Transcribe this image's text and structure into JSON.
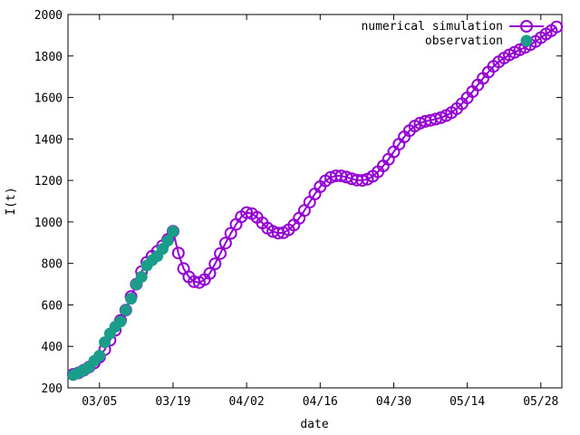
{
  "chart_data": {
    "type": "line",
    "xlabel": "date",
    "ylabel": "I(t)",
    "x_ticks": [
      "03/05",
      "03/19",
      "04/02",
      "04/16",
      "04/30",
      "05/14",
      "05/28"
    ],
    "y_ticks": [
      200,
      400,
      600,
      800,
      1000,
      1200,
      1400,
      1600,
      1800,
      2000
    ],
    "xlim": [
      "2020-02-28",
      "2020-06-01"
    ],
    "ylim": [
      200,
      2000
    ],
    "grid": false,
    "legend_position": "top-right",
    "series": [
      {
        "name": "numerical simulation",
        "style": "line-open-circles",
        "color": "#9400d3",
        "points": [
          [
            "2020-02-29",
            265
          ],
          [
            "2020-03-01",
            272
          ],
          [
            "2020-03-02",
            285
          ],
          [
            "2020-03-03",
            300
          ],
          [
            "2020-03-04",
            320
          ],
          [
            "2020-03-05",
            348
          ],
          [
            "2020-03-06",
            385
          ],
          [
            "2020-03-07",
            430
          ],
          [
            "2020-03-08",
            478
          ],
          [
            "2020-03-09",
            525
          ],
          [
            "2020-03-10",
            575
          ],
          [
            "2020-03-11",
            640
          ],
          [
            "2020-03-12",
            700
          ],
          [
            "2020-03-13",
            760
          ],
          [
            "2020-03-14",
            805
          ],
          [
            "2020-03-15",
            835
          ],
          [
            "2020-03-16",
            858
          ],
          [
            "2020-03-17",
            885
          ],
          [
            "2020-03-18",
            915
          ],
          [
            "2020-03-19",
            955
          ],
          [
            "2020-03-20",
            850
          ],
          [
            "2020-03-21",
            775
          ],
          [
            "2020-03-22",
            735
          ],
          [
            "2020-03-23",
            712
          ],
          [
            "2020-03-24",
            708
          ],
          [
            "2020-03-25",
            722
          ],
          [
            "2020-03-26",
            752
          ],
          [
            "2020-03-27",
            798
          ],
          [
            "2020-03-28",
            848
          ],
          [
            "2020-03-29",
            898
          ],
          [
            "2020-03-30",
            945
          ],
          [
            "2020-03-31",
            988
          ],
          [
            "2020-04-01",
            1025
          ],
          [
            "2020-04-02",
            1045
          ],
          [
            "2020-04-03",
            1040
          ],
          [
            "2020-04-04",
            1022
          ],
          [
            "2020-04-05",
            995
          ],
          [
            "2020-04-06",
            970
          ],
          [
            "2020-04-07",
            954
          ],
          [
            "2020-04-08",
            946
          ],
          [
            "2020-04-09",
            948
          ],
          [
            "2020-04-10",
            962
          ],
          [
            "2020-04-11",
            985
          ],
          [
            "2020-04-12",
            1018
          ],
          [
            "2020-04-13",
            1055
          ],
          [
            "2020-04-14",
            1095
          ],
          [
            "2020-04-15",
            1135
          ],
          [
            "2020-04-16",
            1170
          ],
          [
            "2020-04-17",
            1198
          ],
          [
            "2020-04-18",
            1215
          ],
          [
            "2020-04-19",
            1222
          ],
          [
            "2020-04-20",
            1222
          ],
          [
            "2020-04-21",
            1216
          ],
          [
            "2020-04-22",
            1208
          ],
          [
            "2020-04-23",
            1202
          ],
          [
            "2020-04-24",
            1200
          ],
          [
            "2020-04-25",
            1206
          ],
          [
            "2020-04-26",
            1220
          ],
          [
            "2020-04-27",
            1242
          ],
          [
            "2020-04-28",
            1270
          ],
          [
            "2020-04-29",
            1302
          ],
          [
            "2020-04-30",
            1338
          ],
          [
            "2020-05-01",
            1375
          ],
          [
            "2020-05-02",
            1410
          ],
          [
            "2020-05-03",
            1440
          ],
          [
            "2020-05-04",
            1462
          ],
          [
            "2020-05-05",
            1476
          ],
          [
            "2020-05-06",
            1485
          ],
          [
            "2020-05-07",
            1490
          ],
          [
            "2020-05-08",
            1496
          ],
          [
            "2020-05-09",
            1503
          ],
          [
            "2020-05-10",
            1513
          ],
          [
            "2020-05-11",
            1527
          ],
          [
            "2020-05-12",
            1546
          ],
          [
            "2020-05-13",
            1570
          ],
          [
            "2020-05-14",
            1598
          ],
          [
            "2020-05-15",
            1628
          ],
          [
            "2020-05-16",
            1660
          ],
          [
            "2020-05-17",
            1692
          ],
          [
            "2020-05-18",
            1722
          ],
          [
            "2020-05-19",
            1750
          ],
          [
            "2020-05-20",
            1772
          ],
          [
            "2020-05-21",
            1790
          ],
          [
            "2020-05-22",
            1805
          ],
          [
            "2020-05-23",
            1818
          ],
          [
            "2020-05-24",
            1830
          ],
          [
            "2020-05-25",
            1842
          ],
          [
            "2020-05-26",
            1855
          ],
          [
            "2020-05-27",
            1870
          ],
          [
            "2020-05-28",
            1888
          ],
          [
            "2020-05-29",
            1906
          ],
          [
            "2020-05-30",
            1922
          ],
          [
            "2020-05-31",
            1940
          ]
        ]
      },
      {
        "name": "observation",
        "style": "filled-circles",
        "color": "#1a9e8a",
        "points": [
          [
            "2020-02-29",
            262
          ],
          [
            "2020-03-01",
            272
          ],
          [
            "2020-03-02",
            285
          ],
          [
            "2020-03-03",
            300
          ],
          [
            "2020-03-04",
            330
          ],
          [
            "2020-03-05",
            355
          ],
          [
            "2020-03-06",
            420
          ],
          [
            "2020-03-07",
            462
          ],
          [
            "2020-03-08",
            495
          ],
          [
            "2020-03-09",
            520
          ],
          [
            "2020-03-10",
            575
          ],
          [
            "2020-03-11",
            630
          ],
          [
            "2020-03-12",
            700
          ],
          [
            "2020-03-13",
            735
          ],
          [
            "2020-03-14",
            790
          ],
          [
            "2020-03-15",
            815
          ],
          [
            "2020-03-16",
            835
          ],
          [
            "2020-03-17",
            870
          ],
          [
            "2020-03-18",
            910
          ],
          [
            "2020-03-19",
            955
          ]
        ]
      }
    ]
  }
}
